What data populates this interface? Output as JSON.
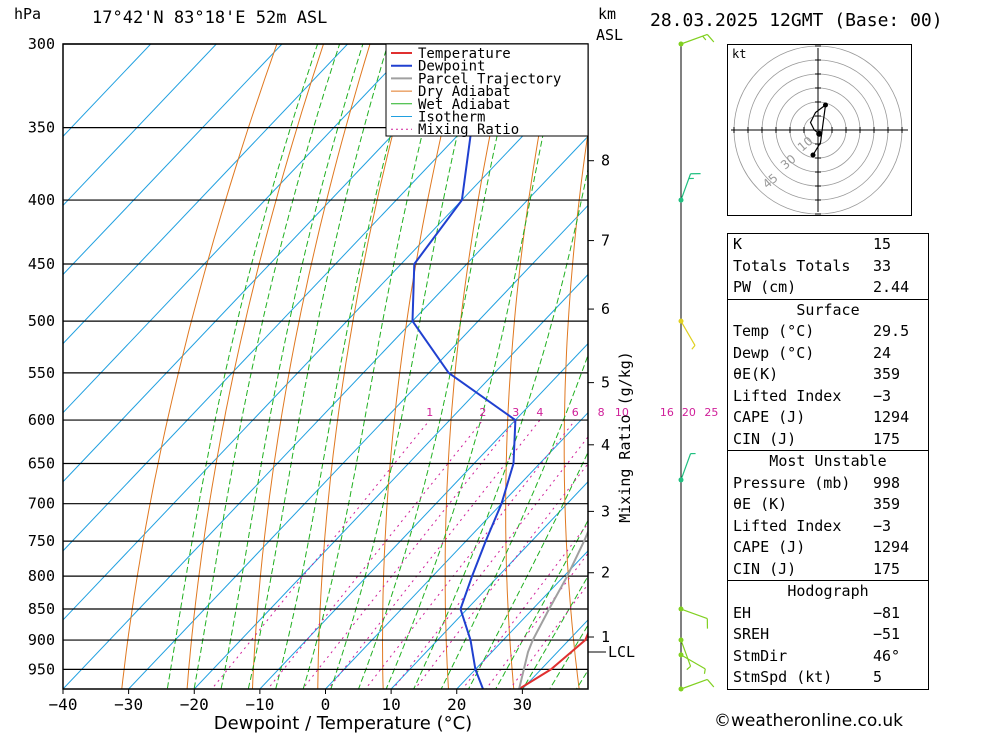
{
  "header": {
    "hpa_label": "hPa",
    "location": "17°42'N  83°18'E  52m  ASL",
    "km_label": "km",
    "asl_label": "ASL",
    "datetime": "28.03.2025  12GMT  (Base: 00)"
  },
  "chart_data": {
    "type": "line",
    "chart_kind": "skew-T log-p diagram",
    "xlabel": "Dewpoint / Temperature (°C)",
    "ylabel": "hPa",
    "xlim": [
      -40,
      40
    ],
    "ylim_hpa": [
      985,
      300
    ],
    "x_ticks": [
      "−40",
      "−30",
      "−20",
      "−10",
      "0",
      "10",
      "20",
      "30"
    ],
    "pressure_levels": [
      300,
      350,
      400,
      450,
      500,
      550,
      600,
      650,
      700,
      750,
      800,
      850,
      900,
      950
    ],
    "height_km_ticks": [
      {
        "label": "8",
        "p": 372
      },
      {
        "label": "7",
        "p": 431
      },
      {
        "label": "6",
        "p": 489
      },
      {
        "label": "5",
        "p": 560
      },
      {
        "label": "4",
        "p": 628
      },
      {
        "label": "3",
        "p": 710
      },
      {
        "label": "2",
        "p": 795
      },
      {
        "label": "1",
        "p": 895
      }
    ],
    "lcl": {
      "label": "LCL",
      "p": 920
    },
    "mixing_ratio_label": "Mixing Ratio (g/kg)",
    "mixing_ratio_values": [
      "1",
      "2",
      "3",
      "4",
      "6",
      "8",
      "10",
      "16",
      "20",
      "25"
    ],
    "legend": [
      "Temperature",
      "Dewpoint",
      "Parcel Trajectory",
      "Dry Adiabat",
      "Wet Adiabat",
      "Isotherm",
      "Mixing Ratio"
    ],
    "legend_position": "top-right",
    "colors": {
      "temperature": "#e03030",
      "dewpoint": "#2040d0",
      "parcel": "#a0a0a0",
      "dry_adiabat": "#e07820",
      "wet_adiabat": "#20b020",
      "isotherm": "#20a0e0",
      "mixing_ratio": "#d0209a"
    },
    "series": [
      {
        "name": "Temperature",
        "points": [
          [
            985,
            29.5
          ],
          [
            950,
            31.5
          ],
          [
            900,
            32.5
          ],
          [
            850,
            30
          ],
          [
            800,
            26
          ],
          [
            750,
            22
          ],
          [
            700,
            18
          ],
          [
            650,
            12
          ],
          [
            600,
            6.5
          ],
          [
            550,
            2
          ],
          [
            500,
            -2
          ],
          [
            450,
            -8.5
          ],
          [
            400,
            -16.5
          ],
          [
            370,
            -22
          ],
          [
            350,
            -25
          ],
          [
            300,
            -36
          ]
        ]
      },
      {
        "name": "Dewpoint",
        "points": [
          [
            985,
            24
          ],
          [
            950,
            20
          ],
          [
            900,
            15
          ],
          [
            850,
            9
          ],
          [
            800,
            6
          ],
          [
            750,
            3
          ],
          [
            700,
            0
          ],
          [
            650,
            -4
          ],
          [
            600,
            -10
          ],
          [
            550,
            -27
          ],
          [
            500,
            -40
          ],
          [
            450,
            -48
          ],
          [
            400,
            -50
          ],
          [
            350,
            -59
          ],
          [
            300,
            -67
          ]
        ]
      },
      {
        "name": "Parcel Trajectory",
        "points": [
          [
            985,
            29.5
          ],
          [
            920,
            25.5
          ],
          [
            900,
            24.5
          ],
          [
            850,
            22.5
          ],
          [
            800,
            20.5
          ],
          [
            750,
            18
          ],
          [
            700,
            15
          ],
          [
            650,
            11.5
          ],
          [
            600,
            7.5
          ],
          [
            550,
            3
          ],
          [
            500,
            -2.5
          ],
          [
            450,
            -9
          ],
          [
            400,
            -17
          ],
          [
            370,
            -22.5
          ]
        ]
      }
    ],
    "wind_barbs": [
      {
        "p": 300,
        "dir": 250,
        "kt": 15
      },
      {
        "p": 400,
        "dir": 200,
        "kt": 15
      },
      {
        "p": 500,
        "dir": 330,
        "kt": 5
      },
      {
        "p": 670,
        "dir": 200,
        "kt": 5
      },
      {
        "p": 850,
        "dir": 290,
        "kt": 10
      },
      {
        "p": 900,
        "dir": 340,
        "kt": 5
      },
      {
        "p": 925,
        "dir": 300,
        "kt": 5
      },
      {
        "p": 985,
        "dir": 250,
        "kt": 10
      }
    ]
  },
  "hodograph": {
    "unit": "kt",
    "ring_labels": [
      "10",
      "30",
      "45"
    ],
    "trace": [
      [
        0.5,
        -1.5
      ],
      [
        -1.5,
        0
      ],
      [
        -3,
        3
      ],
      [
        -1,
        7
      ],
      [
        3,
        10
      ],
      [
        1,
        -5
      ],
      [
        -2,
        -10
      ]
    ]
  },
  "indices": {
    "rows": [
      {
        "label": "K",
        "value": "15"
      },
      {
        "label": "Totals Totals",
        "value": "33"
      },
      {
        "label": "PW (cm)",
        "value": "2.44"
      }
    ]
  },
  "surface": {
    "title": "Surface",
    "rows": [
      {
        "label": "Temp (°C)",
        "value": "29.5"
      },
      {
        "label": "Dewp (°C)",
        "value": "24"
      },
      {
        "label": "θE(K)",
        "value": "359"
      },
      {
        "label": "Lifted Index",
        "value": "−3"
      },
      {
        "label": "CAPE (J)",
        "value": "1294"
      },
      {
        "label": "CIN (J)",
        "value": "175"
      }
    ]
  },
  "most_unstable": {
    "title": "Most Unstable",
    "rows": [
      {
        "label": "Pressure (mb)",
        "value": "998"
      },
      {
        "label": "θE (K)",
        "value": "359"
      },
      {
        "label": "Lifted Index",
        "value": "−3"
      },
      {
        "label": "CAPE (J)",
        "value": "1294"
      },
      {
        "label": "CIN (J)",
        "value": "175"
      }
    ]
  },
  "hodograph_stats": {
    "title": "Hodograph",
    "rows": [
      {
        "label": "EH",
        "value": "−81"
      },
      {
        "label": "SREH",
        "value": "−51"
      },
      {
        "label": "StmDir",
        "value": "46°"
      },
      {
        "label": "StmSpd (kt)",
        "value": "5"
      }
    ]
  },
  "footer": {
    "copyright": "©weatheronline.co.uk"
  }
}
